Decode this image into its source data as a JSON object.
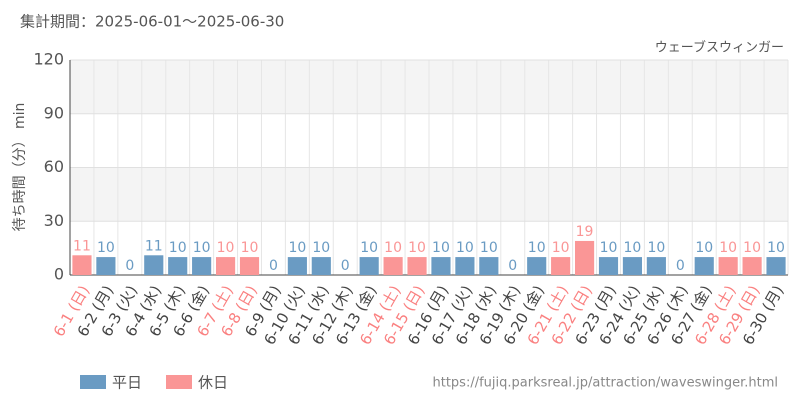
{
  "chart_data": {
    "type": "bar",
    "title": "集計期間：2025-06-01～2025-06-30",
    "subtitle": "ウェーブスウィンガー",
    "y_label": "待ち時間（分） min",
    "source": "https://fujiq.parksreal.jp/attraction/waveswinger.html",
    "categories": [
      "6-1 (日)",
      "6-2 (月)",
      "6-3 (火)",
      "6-4 (水)",
      "6-5 (木)",
      "6-6 (金)",
      "6-7 (土)",
      "6-8 (日)",
      "6-9 (月)",
      "6-10 (火)",
      "6-11 (水)",
      "6-12 (木)",
      "6-13 (金)",
      "6-14 (土)",
      "6-15 (日)",
      "6-16 (月)",
      "6-17 (火)",
      "6-18 (水)",
      "6-19 (木)",
      "6-20 (金)",
      "6-21 (土)",
      "6-22 (日)",
      "6-23 (月)",
      "6-24 (火)",
      "6-25 (水)",
      "6-26 (木)",
      "6-27 (金)",
      "6-28 (土)",
      "6-29 (日)",
      "6-30 (月)"
    ],
    "series": [
      {
        "name": "平日",
        "color": "#6a9bc3",
        "label_color": "#444444",
        "values": [
          null,
          10,
          0,
          11,
          10,
          10,
          null,
          null,
          0,
          10,
          10,
          0,
          10,
          null,
          null,
          10,
          10,
          10,
          0,
          10,
          null,
          null,
          10,
          10,
          10,
          0,
          10,
          null,
          null,
          10
        ]
      },
      {
        "name": "休日",
        "color": "#fa9696",
        "label_color": "#fa8080",
        "values": [
          11,
          null,
          null,
          null,
          null,
          null,
          10,
          10,
          null,
          null,
          null,
          null,
          null,
          10,
          10,
          null,
          null,
          null,
          null,
          null,
          10,
          19,
          null,
          null,
          null,
          null,
          null,
          10,
          10,
          null
        ]
      }
    ],
    "ylim": [
      0,
      120
    ],
    "yticks": [
      0,
      30,
      60,
      90,
      120
    ],
    "grid": true
  }
}
